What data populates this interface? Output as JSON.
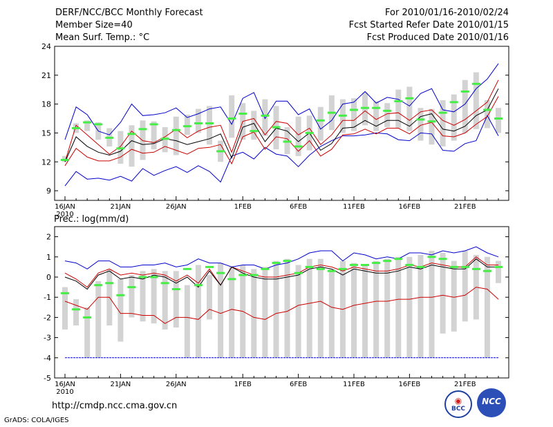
{
  "header": {
    "title": "DERF/NCC/BCC Monthly Forecast",
    "member_size": "Member Size=40",
    "variable": "Mean Surf. Temp.: °C",
    "period": "For 2010/01/16-2010/02/24",
    "started": "Fcst Started Refer Date 2010/01/15",
    "produced": "Fcst Produced Date 2010/01/16"
  },
  "footer": {
    "url": "http://cmdp.ncc.cma.gov.cn",
    "credit": "GrADS: COLA/IGES",
    "logo_bcc": "BCC",
    "logo_ncc": "NCC"
  },
  "colors": {
    "max_min": "#0000cc",
    "spread": "#cc0000",
    "mean": "#000000",
    "box": "#d3d3d3",
    "obs": "#44ee44"
  },
  "chart_data": [
    {
      "type": "box-line",
      "title": "Mean Surf. Temp.: °C",
      "ylim": [
        8,
        24
      ],
      "yticks": [
        9,
        12,
        15,
        18,
        21,
        24
      ],
      "x_tick_labels": [
        "16JAN\n2010",
        "21JAN",
        "26JAN",
        "1FEB",
        "6FEB",
        "11FEB",
        "16FEB",
        "21FEB"
      ],
      "x_tick_days": [
        1,
        6,
        11,
        17,
        22,
        27,
        32,
        37
      ],
      "days": 40,
      "max": [
        9.5,
        11,
        10.2,
        10.3,
        10.1,
        10.5,
        10,
        11.3,
        10.6,
        11.1,
        11.5,
        10.9,
        11.6,
        11,
        9.9,
        12.6,
        13,
        12.3,
        13.5,
        12.8,
        12.6,
        11.5,
        12.7,
        13.6,
        14.2,
        14.7,
        14.7,
        14.8,
        15,
        14.9,
        14.3,
        14.2,
        15,
        14.9,
        13.2,
        13.1,
        13.9,
        14.2,
        16.8,
        14.7
      ],
      "p_upper": [
        12,
        15.8,
        14.8,
        13.8,
        12.8,
        13.6,
        15.2,
        14.2,
        14,
        14.6,
        15.4,
        14.5,
        15.2,
        15.6,
        15.8,
        13,
        16.2,
        16.5,
        14.8,
        16.2,
        16,
        14.8,
        15.5,
        13.8,
        14.8,
        16.3,
        16.3,
        17.3,
        16.4,
        17,
        17.1,
        16.3,
        17.2,
        17.4,
        16.3,
        15.8,
        16.4,
        17.3,
        18.2,
        20.5
      ],
      "mean": [
        12,
        14.6,
        13.6,
        13,
        12.7,
        13.1,
        14.2,
        13.8,
        13.9,
        14.4,
        14.2,
        13.8,
        14.1,
        14.4,
        14.9,
        12.4,
        15.6,
        16,
        14.1,
        15.5,
        15.2,
        14.1,
        15,
        13.2,
        13.9,
        15.5,
        15.6,
        16.3,
        15.7,
        16.3,
        16.3,
        15.7,
        16.7,
        17,
        15.4,
        15.2,
        15.7,
        16.8,
        17.4,
        19.6
      ],
      "p_lower": [
        11.6,
        13.4,
        12.5,
        12.1,
        12.1,
        12.5,
        13.3,
        12.9,
        13,
        13.6,
        13.2,
        12.8,
        13.4,
        13.5,
        13.8,
        11.8,
        14.6,
        15.1,
        13.3,
        14.6,
        14.4,
        13.1,
        14.2,
        12.6,
        13.3,
        14.8,
        14.9,
        15.4,
        14.9,
        15.5,
        15.5,
        14.9,
        15.8,
        16.1,
        14.7,
        14.6,
        15,
        15.9,
        16.7,
        18.8
      ],
      "min_top": [
        14.3,
        17.7,
        16.9,
        15.2,
        14.8,
        16.1,
        18,
        16.8,
        16.9,
        17.1,
        17.6,
        16.6,
        17,
        17.5,
        17.7,
        15.9,
        18.6,
        19.2,
        16.5,
        18.3,
        18.3,
        16.9,
        17.5,
        15.4,
        16.3,
        18,
        18.2,
        19.3,
        18.1,
        18.7,
        18.5,
        17.8,
        19.1,
        19.6,
        17.4,
        17.2,
        18,
        19.6,
        20.6,
        22.2
      ],
      "obs": [
        12.2,
        15.5,
        16.1,
        15.9,
        14.5,
        13.4,
        14.9,
        15.4,
        15.9,
        14.4,
        15.3,
        15.7,
        16,
        16,
        13.1,
        16.5,
        17,
        15.2,
        16.8,
        15.6,
        14.1,
        13.6,
        15,
        16.3,
        17.1,
        16.8,
        17.4,
        17.6,
        17.6,
        17.3,
        18.3,
        18.6,
        16.4,
        16.2,
        17.1,
        18.2,
        19.3,
        20.1,
        17.4,
        16.5
      ],
      "box_low": [
        12,
        15,
        15.2,
        14.3,
        13.6,
        11.8,
        11.5,
        12.2,
        13.3,
        13,
        12.7,
        14.8,
        15,
        13.8,
        12,
        14.5,
        14.3,
        14.3,
        14.7,
        13.3,
        12.8,
        12.6,
        13.2,
        14.2,
        15.3,
        15,
        15.2,
        15.8,
        15.2,
        15.6,
        15.5,
        15.2,
        14.2,
        13.8,
        13.6,
        14.2,
        15,
        15.4,
        15.5,
        15
      ],
      "box_high": [
        12.6,
        16,
        16.3,
        16.1,
        15.5,
        15.2,
        15.8,
        16.3,
        16.2,
        15.6,
        16.7,
        16.9,
        17.5,
        17.8,
        14.2,
        18.9,
        18.1,
        17.3,
        18.5,
        17.8,
        15.6,
        16.7,
        16.8,
        17.7,
        18.9,
        18.5,
        18.6,
        19.2,
        18.3,
        18.1,
        19.5,
        19.8,
        17.6,
        17.5,
        18.4,
        19,
        20.5,
        21.3,
        18.4,
        17.6
      ]
    },
    {
      "type": "box-line",
      "title": "Prec.: log(mm/d)",
      "ylim": [
        -5,
        2.5
      ],
      "yticks": [
        -5,
        -4,
        -3,
        -2,
        -1,
        0,
        1,
        2
      ],
      "x_tick_labels": [
        "16JAN\n2010",
        "21JAN",
        "26JAN",
        "1FEB",
        "6FEB",
        "11FEB",
        "16FEB",
        "21FEB"
      ],
      "x_tick_days": [
        1,
        6,
        11,
        17,
        22,
        27,
        32,
        37
      ],
      "days": 40,
      "max": [
        0.8,
        0.7,
        0.4,
        0.8,
        0.8,
        0.5,
        0.5,
        0.6,
        0.6,
        0.7,
        0.5,
        0.6,
        0.9,
        0.7,
        0.7,
        0.5,
        0.6,
        0.6,
        0.4,
        0.6,
        0.7,
        0.9,
        1.2,
        1.3,
        1.3,
        0.8,
        1.2,
        1.1,
        0.9,
        1,
        0.9,
        1.2,
        1.2,
        1.1,
        1.3,
        1.2,
        1.3,
        1.5,
        1.2,
        1
      ],
      "upper": [
        0.2,
        -0.1,
        -0.5,
        0.2,
        0.4,
        0.1,
        0.2,
        0.1,
        0.2,
        0.1,
        -0.2,
        0.1,
        -0.3,
        0.4,
        -0.4,
        0.5,
        0.3,
        0.1,
        0,
        0,
        0.1,
        0.2,
        0.5,
        0.6,
        0.5,
        0.3,
        0.5,
        0.4,
        0.3,
        0.3,
        0.4,
        0.6,
        0.5,
        0.7,
        0.6,
        0.5,
        0.5,
        1,
        0.6,
        0.6
      ],
      "mean": [
        0,
        -0.2,
        -0.6,
        0.1,
        0.3,
        -0.1,
        0,
        -0.1,
        0.1,
        0,
        -0.3,
        0,
        -0.5,
        0.3,
        -0.4,
        0.5,
        0.2,
        0,
        -0.1,
        -0.1,
        0,
        0.1,
        0.4,
        0.5,
        0.4,
        0.1,
        0.4,
        0.3,
        0.2,
        0.2,
        0.3,
        0.5,
        0.4,
        0.6,
        0.5,
        0.4,
        0.4,
        0.9,
        0.5,
        0.5
      ],
      "lower": [
        -1.2,
        -1.4,
        -1.6,
        -1,
        -1,
        -1.8,
        -1.8,
        -1.9,
        -1.9,
        -2.3,
        -2,
        -2,
        -2.1,
        -1.6,
        -1.8,
        -1.6,
        -1.7,
        -2,
        -2.1,
        -1.8,
        -1.7,
        -1.4,
        -1.3,
        -1.2,
        -1.5,
        -1.6,
        -1.4,
        -1.3,
        -1.2,
        -1.2,
        -1.1,
        -1.1,
        -1,
        -1,
        -0.9,
        -1,
        -0.9,
        -0.5,
        -0.6,
        -1.1
      ],
      "min": [
        -4,
        -4,
        -4,
        -4,
        -4,
        -4,
        -4,
        -4,
        -4,
        -4,
        -4,
        -4,
        -4,
        -4,
        -4,
        -4,
        -4,
        -4,
        -4,
        -4,
        -4,
        -4,
        -4,
        -4,
        -4,
        -4,
        -4,
        -4,
        -4,
        -4,
        -4,
        -4,
        -4,
        -4,
        -4,
        -4,
        -4,
        -4,
        -4,
        -4
      ],
      "obs": [
        -0.8,
        -1.6,
        -2,
        -0.4,
        -0.3,
        -0.9,
        -0.5,
        0,
        0,
        -0.3,
        -0.6,
        0.4,
        -0.4,
        0.5,
        0.2,
        -0.1,
        0.1,
        0.1,
        0.4,
        0.7,
        0.8,
        0.2,
        0.5,
        0.4,
        0.3,
        0.4,
        0.6,
        0.6,
        0.7,
        0.8,
        0.9,
        0.6,
        0.5,
        1,
        0.9,
        0.5,
        0.5,
        0.4,
        0.3,
        0.5
      ],
      "box_low": [
        -2.6,
        -2.4,
        -4,
        -4,
        -2.4,
        -3.2,
        -2,
        -2.2,
        -2.3,
        -2.6,
        -2.5,
        -4,
        -4,
        -2.1,
        -4,
        -4,
        -4,
        -4,
        -4,
        -4,
        -4,
        -4,
        -4,
        -4,
        -4,
        -4,
        -4,
        -4,
        -4,
        -4,
        -4,
        -4,
        -4,
        -4,
        -2.8,
        -2.7,
        -2.2,
        -2.1,
        -4,
        -0.3
      ],
      "box_high": [
        -0.5,
        -1.1,
        -1.5,
        -0.2,
        0.4,
        -0.1,
        0.1,
        0.3,
        0.4,
        0.3,
        0.3,
        -0.4,
        0.6,
        0.1,
        0.7,
        0.5,
        0.6,
        0.4,
        0.5,
        0.8,
        0.9,
        0.6,
        0.9,
        0.9,
        0.4,
        0.8,
        0.7,
        0.6,
        0.8,
        0.9,
        1,
        1,
        1.1,
        1.3,
        1.2,
        0.8,
        1.3,
        1.1,
        1,
        0.8
      ]
    }
  ]
}
